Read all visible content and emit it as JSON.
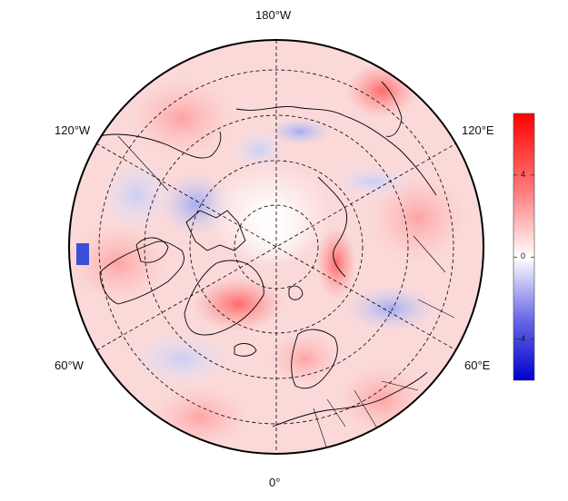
{
  "map": {
    "projection": "north-polar-stereographic",
    "graticule": "dashed",
    "coastlines": true,
    "country_borders": true
  },
  "longitude_labels": {
    "top": "180°W",
    "bottom": "0°",
    "upper_left": "120°W",
    "upper_right": "120°E",
    "lower_left": "60°W",
    "lower_right": "60°E"
  },
  "colorbar": {
    "colormap": "blue-white-red",
    "min_color": "#0000cc",
    "mid_color": "#ffffff",
    "max_color": "#ff0000",
    "range": [
      -6,
      7
    ],
    "ticks": [
      {
        "value": 4,
        "label": "4"
      },
      {
        "value": 0,
        "label": "0"
      },
      {
        "value": -4,
        "label": "-4"
      }
    ]
  }
}
